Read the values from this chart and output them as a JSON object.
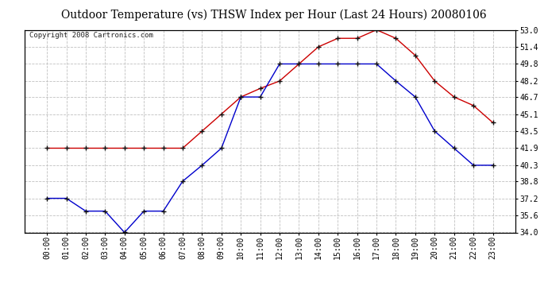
{
  "title": "Outdoor Temperature (vs) THSW Index per Hour (Last 24 Hours) 20080106",
  "copyright": "Copyright 2008 Cartronics.com",
  "hours": [
    "00:00",
    "01:00",
    "02:00",
    "03:00",
    "04:00",
    "05:00",
    "06:00",
    "07:00",
    "08:00",
    "09:00",
    "10:00",
    "11:00",
    "12:00",
    "13:00",
    "14:00",
    "15:00",
    "16:00",
    "17:00",
    "18:00",
    "19:00",
    "20:00",
    "21:00",
    "22:00",
    "23:00"
  ],
  "temp_blue": [
    37.2,
    37.2,
    36.0,
    36.0,
    34.0,
    36.0,
    36.0,
    38.8,
    40.3,
    41.9,
    46.7,
    46.7,
    49.8,
    49.8,
    49.8,
    49.8,
    49.8,
    49.8,
    48.2,
    46.7,
    43.5,
    41.9,
    40.3,
    40.3
  ],
  "thsw_red": [
    41.9,
    41.9,
    41.9,
    41.9,
    41.9,
    41.9,
    41.9,
    41.9,
    43.5,
    45.1,
    46.7,
    47.5,
    48.2,
    49.8,
    51.4,
    52.2,
    52.2,
    53.0,
    52.2,
    50.6,
    48.2,
    46.7,
    45.9,
    44.3
  ],
  "ylim": [
    34.0,
    53.0
  ],
  "yticks": [
    34.0,
    35.6,
    37.2,
    38.8,
    40.3,
    41.9,
    43.5,
    45.1,
    46.7,
    48.2,
    49.8,
    51.4,
    53.0
  ],
  "blue_color": "#0000cc",
  "red_color": "#cc0000",
  "grid_color": "#c0c0c0",
  "bg_color": "#ffffff",
  "title_fontsize": 10,
  "copyright_fontsize": 6.5,
  "tick_fontsize": 7
}
